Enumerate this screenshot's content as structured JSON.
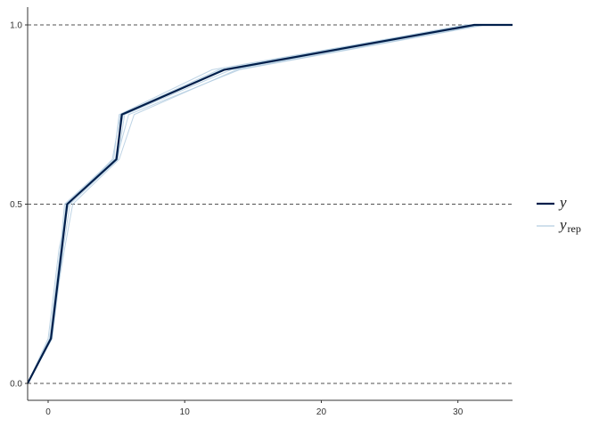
{
  "chart_data": {
    "type": "line",
    "title": "",
    "xlabel": "",
    "ylabel": "",
    "xlim": [
      -1.5,
      34
    ],
    "ylim": [
      0,
      1.06
    ],
    "x_ticks": [
      0,
      10,
      20,
      30
    ],
    "x_tick_labels": [
      "0",
      "10",
      "20",
      "30"
    ],
    "y_ticks": [
      0,
      0.5,
      1
    ],
    "y_tick_labels": [
      "0.0",
      "0.5",
      "1.0"
    ],
    "grid": "dashed horizontal at y ticks",
    "legend_position": "right",
    "colors": {
      "y": "#011f4b",
      "yrep": "#b3cde0",
      "grid": "#1a1a1a",
      "axis": "#333333"
    },
    "series": [
      {
        "name": "y",
        "x": [
          -1.5,
          0.2,
          0.6,
          1.0,
          1.4,
          5.0,
          5.4,
          12.9,
          31.2,
          34
        ],
        "y": [
          0,
          0.125,
          0.25,
          0.375,
          0.5,
          0.625,
          0.75,
          0.875,
          1.0,
          1.0
        ]
      },
      {
        "name": "y_rep",
        "replicates": [
          {
            "x": [
              -1.5,
              0.1,
              0.5,
              0.9,
              1.2,
              4.8,
              5.2,
              12.0,
              30.8,
              34
            ],
            "y": [
              0,
              0.125,
              0.25,
              0.375,
              0.5,
              0.625,
              0.75,
              0.875,
              1.0,
              1.0
            ]
          },
          {
            "x": [
              -1.5,
              0.3,
              0.7,
              1.1,
              1.6,
              5.1,
              5.6,
              13.4,
              31.5,
              34
            ],
            "y": [
              0,
              0.125,
              0.25,
              0.375,
              0.5,
              0.625,
              0.75,
              0.875,
              1.0,
              1.0
            ]
          },
          {
            "x": [
              -1.5,
              0.2,
              0.6,
              1.0,
              1.4,
              5.0,
              5.9,
              14.0,
              32.0,
              34
            ],
            "y": [
              0,
              0.125,
              0.25,
              0.375,
              0.5,
              0.625,
              0.75,
              0.875,
              1.0,
              1.0
            ]
          },
          {
            "x": [
              -1.5,
              0.0,
              0.4,
              0.8,
              1.5,
              4.7,
              5.3,
              12.5,
              30.5,
              34
            ],
            "y": [
              0,
              0.125,
              0.25,
              0.375,
              0.5,
              0.625,
              0.75,
              0.875,
              1.0,
              1.0
            ]
          },
          {
            "x": [
              -1.5,
              0.25,
              0.65,
              1.2,
              1.8,
              5.2,
              6.3,
              13.8,
              31.8,
              34
            ],
            "y": [
              0,
              0.125,
              0.25,
              0.375,
              0.5,
              0.625,
              0.75,
              0.875,
              1.0,
              1.0
            ]
          },
          {
            "x": [
              -1.5,
              0.15,
              0.55,
              0.95,
              1.3,
              4.9,
              5.5,
              12.7,
              31.0,
              34
            ],
            "y": [
              0,
              0.125,
              0.25,
              0.375,
              0.5,
              0.625,
              0.75,
              0.875,
              1.0,
              1.0
            ]
          }
        ]
      }
    ],
    "legend": {
      "y_label": "y",
      "yrep_label": "y",
      "yrep_subscript": "rep"
    }
  }
}
